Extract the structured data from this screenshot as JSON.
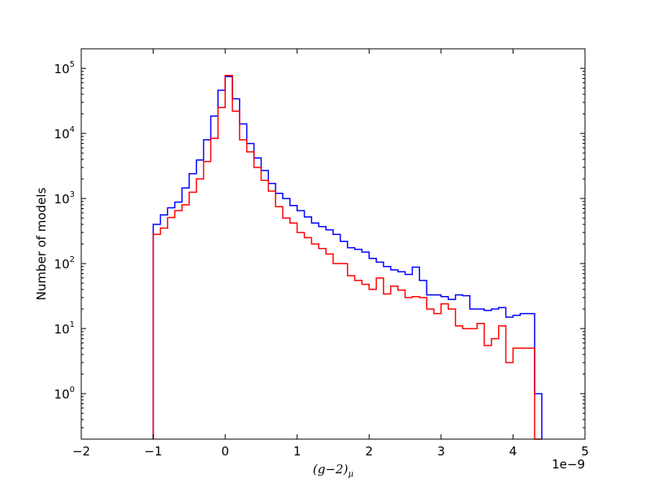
{
  "chart_data": {
    "type": "histogram-step",
    "title": "",
    "xlabel": "(g−2)",
    "xlabel_subscript": "μ",
    "ylabel": "Number of models",
    "x_offset_label": "1e−9",
    "x_scale_factor": 1e-09,
    "xlim": [
      -2,
      5
    ],
    "ylim": [
      0.2,
      200000
    ],
    "yscale": "log",
    "x_ticks": [
      -2,
      -1,
      0,
      1,
      2,
      3,
      4,
      5
    ],
    "x_tick_labels": [
      "−2",
      "−1",
      "0",
      "1",
      "2",
      "3",
      "4",
      "5"
    ],
    "y_ticks": [
      1,
      10,
      100,
      1000,
      10000,
      100000
    ],
    "y_tick_labels": [
      {
        "base": "10",
        "exp": "0"
      },
      {
        "base": "10",
        "exp": "1"
      },
      {
        "base": "10",
        "exp": "2"
      },
      {
        "base": "10",
        "exp": "3"
      },
      {
        "base": "10",
        "exp": "4"
      },
      {
        "base": "10",
        "exp": "5"
      }
    ],
    "grid": false,
    "legend": "none",
    "series": [
      {
        "color": "#0000ff",
        "bin_start": -1.0,
        "bin_width": 0.1,
        "counts": [
          400,
          560,
          720,
          880,
          1450,
          2400,
          3900,
          8000,
          18500,
          46000,
          75000,
          34000,
          14000,
          7000,
          4200,
          2700,
          1700,
          1200,
          1000,
          780,
          650,
          520,
          420,
          370,
          330,
          280,
          220,
          175,
          165,
          150,
          120,
          105,
          90,
          80,
          75,
          68,
          88,
          55,
          33,
          33,
          31,
          28,
          33,
          32,
          20,
          20,
          19,
          20,
          21,
          15,
          16,
          17,
          17,
          1
        ]
      },
      {
        "color": "#ff0000",
        "bin_start": -1.0,
        "bin_width": 0.1,
        "counts": [
          280,
          350,
          510,
          650,
          800,
          1250,
          2000,
          3700,
          8400,
          25000,
          78000,
          22000,
          8000,
          5200,
          3000,
          1900,
          1300,
          750,
          500,
          420,
          300,
          250,
          200,
          170,
          140,
          100,
          100,
          65,
          55,
          48,
          40,
          60,
          34,
          45,
          39,
          30,
          31,
          30,
          20,
          17,
          24,
          20,
          11,
          10,
          10,
          12,
          5.5,
          7,
          11,
          3,
          5,
          5,
          5,
          0
        ]
      }
    ]
  }
}
